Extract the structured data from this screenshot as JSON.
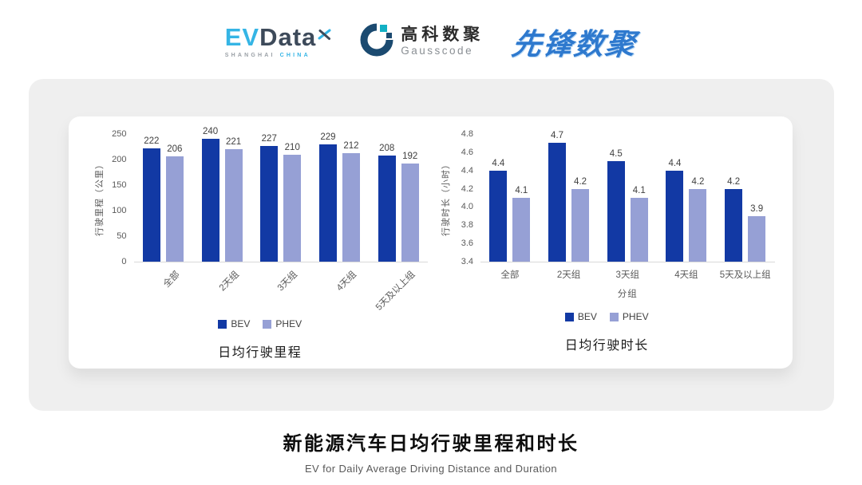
{
  "header": {
    "evdata": {
      "part1": "EV",
      "part2": "Data",
      "sub_left": "SHANGHAI",
      "sub_right": "CHINA"
    },
    "gausscode": {
      "name_cn": "高科数聚",
      "name_en": "Gausscode"
    },
    "pioneer": {
      "name": "先锋数聚"
    }
  },
  "chart_data": [
    {
      "type": "bar",
      "title": "日均行驶里程",
      "categories": [
        "全部",
        "2天组",
        "3天组",
        "4天组",
        "5天及以上组"
      ],
      "series": [
        {
          "name": "BEV",
          "color": "#1239A4",
          "values": [
            222,
            240,
            227,
            229,
            208
          ]
        },
        {
          "name": "PHEV",
          "color": "#96A0D5",
          "values": [
            206,
            221,
            210,
            212,
            192
          ]
        }
      ],
      "xlabel": "",
      "ylabel": "行驶里程（公里）",
      "ylim": [
        0,
        250
      ],
      "yticks": [
        0,
        50,
        100,
        150,
        200,
        250
      ],
      "ytick_labels": [
        "0",
        "50",
        "100",
        "150",
        "200",
        "250"
      ],
      "x_label_rotation": -45,
      "grid": false,
      "legend_position": "bottom"
    },
    {
      "type": "bar",
      "title": "日均行驶时长",
      "categories": [
        "全部",
        "2天组",
        "3天组",
        "4天组",
        "5天及以上组"
      ],
      "series": [
        {
          "name": "BEV",
          "color": "#1239A4",
          "values": [
            4.4,
            4.7,
            4.5,
            4.4,
            4.2
          ]
        },
        {
          "name": "PHEV",
          "color": "#96A0D5",
          "values": [
            4.1,
            4.2,
            4.1,
            4.2,
            3.9
          ]
        }
      ],
      "xlabel": "分组",
      "ylabel": "行驶时长（小时）",
      "ylim": [
        3.4,
        4.8
      ],
      "yticks": [
        3.4,
        3.6,
        3.8,
        4.0,
        4.2,
        4.4,
        4.6,
        4.8
      ],
      "ytick_labels": [
        "3.4",
        "3.6",
        "3.8",
        "4.0",
        "4.2",
        "4.4",
        "4.6",
        "4.8"
      ],
      "x_label_rotation": 0,
      "grid": false,
      "legend_position": "bottom"
    }
  ],
  "footer": {
    "title": "新能源汽车日均行驶里程和时长",
    "subtitle": "EV for Daily Average Driving Distance and Duration"
  },
  "colors": {
    "bev": "#1239A4",
    "phev": "#96A0D5",
    "card_bg": "#EFEFEF",
    "axis_text": "#595959",
    "data_label": "#404040",
    "axis_line": "#D9D9D9",
    "evdata_blue": "#35B5E5",
    "evdata_dark": "#3D4A5A",
    "gauss_navy": "#1B4A70",
    "gauss_teal": "#12B0C4",
    "pioneer_blue": "#2E79CE"
  }
}
